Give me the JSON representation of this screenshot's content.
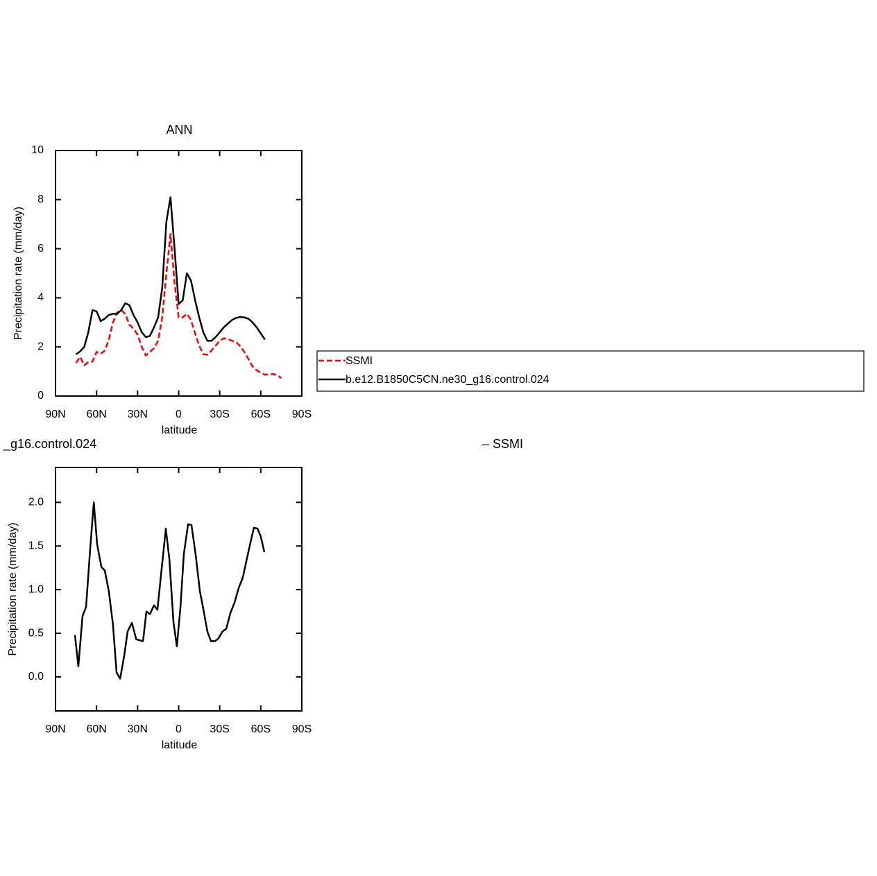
{
  "chart_data": [
    {
      "type": "line",
      "title": "ANN",
      "xlabel": "latitude",
      "ylabel": "Precipitation rate (mm/day)",
      "xlim": [
        90,
        -90
      ],
      "xticks": [
        {
          "value": 90,
          "label": "90N"
        },
        {
          "value": 60,
          "label": "60N"
        },
        {
          "value": 30,
          "label": "30N"
        },
        0,
        {
          "value": -30,
          "label": "30S"
        },
        {
          "value": -60,
          "label": "60S"
        },
        {
          "value": -90,
          "label": "90S"
        }
      ],
      "ylim": [
        0,
        10
      ],
      "yticks": [
        0,
        2,
        4,
        6,
        8,
        10
      ],
      "legend": "outside-right",
      "x": [
        75,
        72,
        69,
        66,
        63,
        60,
        57,
        54,
        51,
        48,
        45,
        42,
        39,
        36,
        33,
        30,
        27,
        24,
        21,
        18,
        15,
        12,
        9,
        6,
        3,
        0,
        -3,
        -6,
        -9,
        -12,
        -15,
        -18,
        -21,
        -24,
        -27,
        -30,
        -33,
        -36,
        -39,
        -42,
        -45,
        -48,
        -51,
        -54,
        -57,
        -60,
        -63,
        -66,
        -69,
        -72,
        -75
      ],
      "series": [
        {
          "name": "SSMI",
          "color": "#ff0000",
          "dash": "dashed",
          "values": [
            1.35,
            1.6,
            1.25,
            1.38,
            1.4,
            1.8,
            1.72,
            1.85,
            2.3,
            3.0,
            3.4,
            3.5,
            3.35,
            2.9,
            2.75,
            2.5,
            2.0,
            1.65,
            1.8,
            1.95,
            2.25,
            3.2,
            5.0,
            6.6,
            4.6,
            3.2,
            3.2,
            3.35,
            3.1,
            2.55,
            2.05,
            1.7,
            1.68,
            1.85,
            2.05,
            2.25,
            2.35,
            2.32,
            2.25,
            2.2,
            2.02,
            1.8,
            1.5,
            1.2,
            1.05,
            0.95,
            0.87,
            0.88,
            0.9,
            0.85,
            0.73
          ]
        },
        {
          "name": "b.e12.B1850C5CN.ne30_g16.control.024",
          "color": "#000000",
          "dash": "solid",
          "values": [
            1.7,
            1.82,
            2.0,
            2.6,
            3.5,
            3.45,
            3.05,
            3.15,
            3.3,
            3.35,
            3.35,
            3.5,
            3.78,
            3.7,
            3.3,
            3.0,
            2.6,
            2.4,
            2.45,
            2.8,
            3.2,
            4.4,
            7.1,
            8.1,
            6.0,
            3.75,
            3.9,
            5.0,
            4.7,
            3.9,
            3.2,
            2.6,
            2.25,
            2.25,
            2.4,
            2.6,
            2.8,
            2.95,
            3.1,
            3.18,
            3.22,
            3.2,
            3.15,
            3.0,
            2.8,
            2.55,
            2.3,
            null,
            null,
            null,
            null
          ]
        }
      ]
    },
    {
      "type": "line",
      "left_title": "_g16.control.024",
      "right_title": "– SSMI",
      "xlabel": "latitude",
      "ylabel": "Precipitation rate (mm/day)",
      "xlim": [
        90,
        -90
      ],
      "xticks": [
        {
          "value": 90,
          "label": "90N"
        },
        {
          "value": 60,
          "label": "60N"
        },
        {
          "value": 30,
          "label": "30N"
        },
        0,
        {
          "value": -30,
          "label": "30S"
        },
        {
          "value": -60,
          "label": "60S"
        },
        {
          "value": -90,
          "label": "90S"
        }
      ],
      "ylim": [
        -0.39,
        2.4
      ],
      "yticks": [
        {
          "value": 0,
          "label": "0.0"
        },
        0.5,
        {
          "value": 1,
          "label": "1.0"
        },
        1.5,
        {
          "value": 2,
          "label": "2.0"
        }
      ],
      "color": "#000000",
      "x": [
        75.8,
        73.3,
        70.2,
        67.7,
        64.6,
        62,
        59.6,
        56.5,
        54,
        51,
        48,
        45.4,
        42.8,
        39.8,
        37.3,
        34.2,
        31,
        26,
        23.6,
        21,
        18,
        15.5,
        12.4,
        9.4,
        6.8,
        3.8,
        1.3,
        -1.3,
        -3.8,
        -6.9,
        -9.4,
        -12.4,
        -15.5,
        -18,
        -21,
        -23.6,
        -26.6,
        -29,
        -32,
        -34.8,
        -37.8,
        -40.8,
        -43.9,
        -46.9,
        -49.8,
        -52.5,
        -55,
        -57.6,
        -60,
        -62.6
      ],
      "values": [
        0.48,
        0.12,
        0.7,
        0.8,
        1.48,
        2.0,
        1.52,
        1.26,
        1.22,
        0.98,
        0.6,
        0.05,
        -0.02,
        0.24,
        0.52,
        0.62,
        0.43,
        0.41,
        0.75,
        0.72,
        0.82,
        0.77,
        1.24,
        1.7,
        1.35,
        0.63,
        0.35,
        0.8,
        1.41,
        1.75,
        1.74,
        1.4,
        0.98,
        0.78,
        0.52,
        0.41,
        0.41,
        0.44,
        0.52,
        0.55,
        0.73,
        0.85,
        1.02,
        1.14,
        1.35,
        1.54,
        1.71,
        1.7,
        1.61,
        1.43
      ]
    }
  ]
}
